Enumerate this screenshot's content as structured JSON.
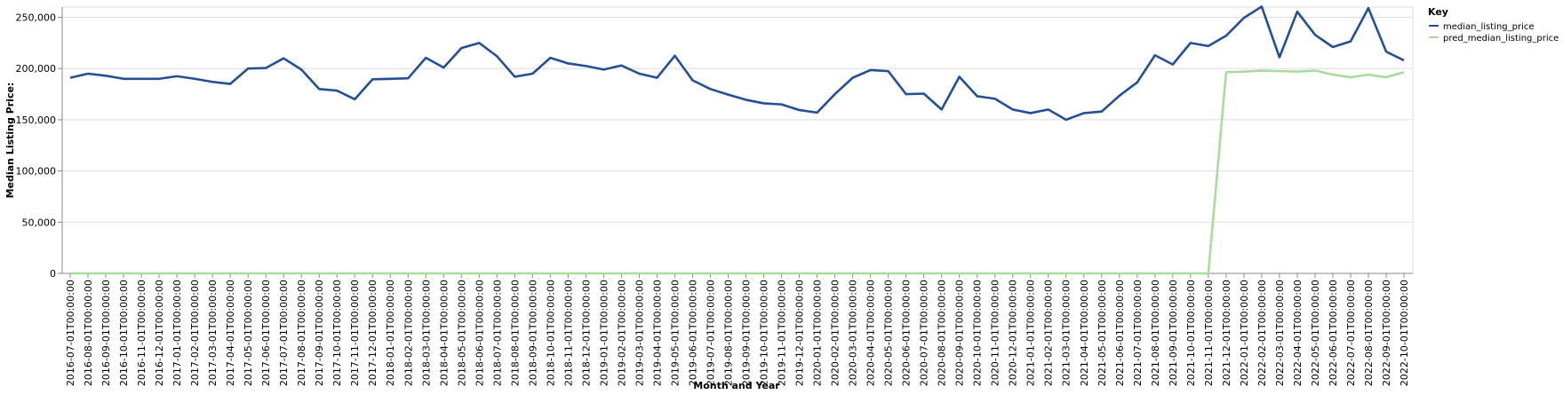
{
  "chart_data": {
    "type": "line",
    "xlabel": "Month and Year",
    "ylabel": "Median Listing Price:",
    "ylim": [
      0,
      260000
    ],
    "y_ticks": [
      0,
      50000,
      100000,
      150000,
      200000,
      250000
    ],
    "y_tick_labels": [
      "0",
      "50,000",
      "100,000",
      "150,000",
      "200,000",
      "250,000"
    ],
    "grid": true,
    "legend": {
      "title": "Key",
      "placement": "top-right"
    },
    "categories": [
      "2016-07-01T00:00:00",
      "2016-08-01T00:00:00",
      "2016-09-01T00:00:00",
      "2016-10-01T00:00:00",
      "2016-11-01T00:00:00",
      "2016-12-01T00:00:00",
      "2017-01-01T00:00:00",
      "2017-02-01T00:00:00",
      "2017-03-01T00:00:00",
      "2017-04-01T00:00:00",
      "2017-05-01T00:00:00",
      "2017-06-01T00:00:00",
      "2017-07-01T00:00:00",
      "2017-08-01T00:00:00",
      "2017-09-01T00:00:00",
      "2017-10-01T00:00:00",
      "2017-11-01T00:00:00",
      "2017-12-01T00:00:00",
      "2018-01-01T00:00:00",
      "2018-02-01T00:00:00",
      "2018-03-01T00:00:00",
      "2018-04-01T00:00:00",
      "2018-05-01T00:00:00",
      "2018-06-01T00:00:00",
      "2018-07-01T00:00:00",
      "2018-08-01T00:00:00",
      "2018-09-01T00:00:00",
      "2018-10-01T00:00:00",
      "2018-11-01T00:00:00",
      "2018-12-01T00:00:00",
      "2019-01-01T00:00:00",
      "2019-02-01T00:00:00",
      "2019-03-01T00:00:00",
      "2019-04-01T00:00:00",
      "2019-05-01T00:00:00",
      "2019-06-01T00:00:00",
      "2019-07-01T00:00:00",
      "2019-08-01T00:00:00",
      "2019-09-01T00:00:00",
      "2019-10-01T00:00:00",
      "2019-11-01T00:00:00",
      "2019-12-01T00:00:00",
      "2020-01-01T00:00:00",
      "2020-02-01T00:00:00",
      "2020-03-01T00:00:00",
      "2020-04-01T00:00:00",
      "2020-05-01T00:00:00",
      "2020-06-01T00:00:00",
      "2020-07-01T00:00:00",
      "2020-08-01T00:00:00",
      "2020-09-01T00:00:00",
      "2020-10-01T00:00:00",
      "2020-11-01T00:00:00",
      "2020-12-01T00:00:00",
      "2021-01-01T00:00:00",
      "2021-02-01T00:00:00",
      "2021-03-01T00:00:00",
      "2021-04-01T00:00:00",
      "2021-05-01T00:00:00",
      "2021-06-01T00:00:00",
      "2021-07-01T00:00:00",
      "2021-08-01T00:00:00",
      "2021-09-01T00:00:00",
      "2021-10-01T00:00:00",
      "2021-11-01T00:00:00",
      "2021-12-01T00:00:00",
      "2022-01-01T00:00:00",
      "2022-02-01T00:00:00",
      "2022-03-01T00:00:00",
      "2022-04-01T00:00:00",
      "2022-05-01T00:00:00",
      "2022-06-01T00:00:00",
      "2022-07-01T00:00:00",
      "2022-08-01T00:00:00",
      "2022-09-01T00:00:00",
      "2022-10-01T00:00:00"
    ],
    "series": [
      {
        "name": "median_listing_price",
        "color": "#234f96",
        "values": [
          191000,
          195000,
          193000,
          190000,
          190000,
          190000,
          192500,
          190000,
          187000,
          185000,
          200000,
          200500,
          210000,
          199000,
          180000,
          178500,
          170000,
          189500,
          190000,
          190500,
          210500,
          201000,
          220000,
          225000,
          212000,
          192000,
          195000,
          210500,
          205000,
          202500,
          199000,
          203000,
          195000,
          191000,
          212500,
          188500,
          180000,
          174500,
          169500,
          166000,
          165000,
          159500,
          157000,
          175000,
          191000,
          198500,
          197500,
          175000,
          175500,
          160000,
          192000,
          173000,
          170500,
          160000,
          156500,
          160000,
          150000,
          156500,
          158000,
          173500,
          186500,
          213000,
          204000,
          225000,
          222000,
          232000,
          249500,
          260500,
          211000,
          255500,
          233000,
          221000,
          226500,
          259000,
          216500,
          208000
        ]
      },
      {
        "name": "pred_median_listing_price",
        "color": "#a8dc9c",
        "values": [
          0,
          0,
          0,
          0,
          0,
          0,
          0,
          0,
          0,
          0,
          0,
          0,
          0,
          0,
          0,
          0,
          0,
          0,
          0,
          0,
          0,
          0,
          0,
          0,
          0,
          0,
          0,
          0,
          0,
          0,
          0,
          0,
          0,
          0,
          0,
          0,
          0,
          0,
          0,
          0,
          0,
          0,
          0,
          0,
          0,
          0,
          0,
          0,
          0,
          0,
          0,
          0,
          0,
          0,
          0,
          0,
          0,
          0,
          0,
          0,
          0,
          0,
          0,
          0,
          0,
          196500,
          197000,
          198000,
          197500,
          197000,
          198000,
          194000,
          191500,
          194000,
          191500,
          196500
        ]
      }
    ]
  }
}
